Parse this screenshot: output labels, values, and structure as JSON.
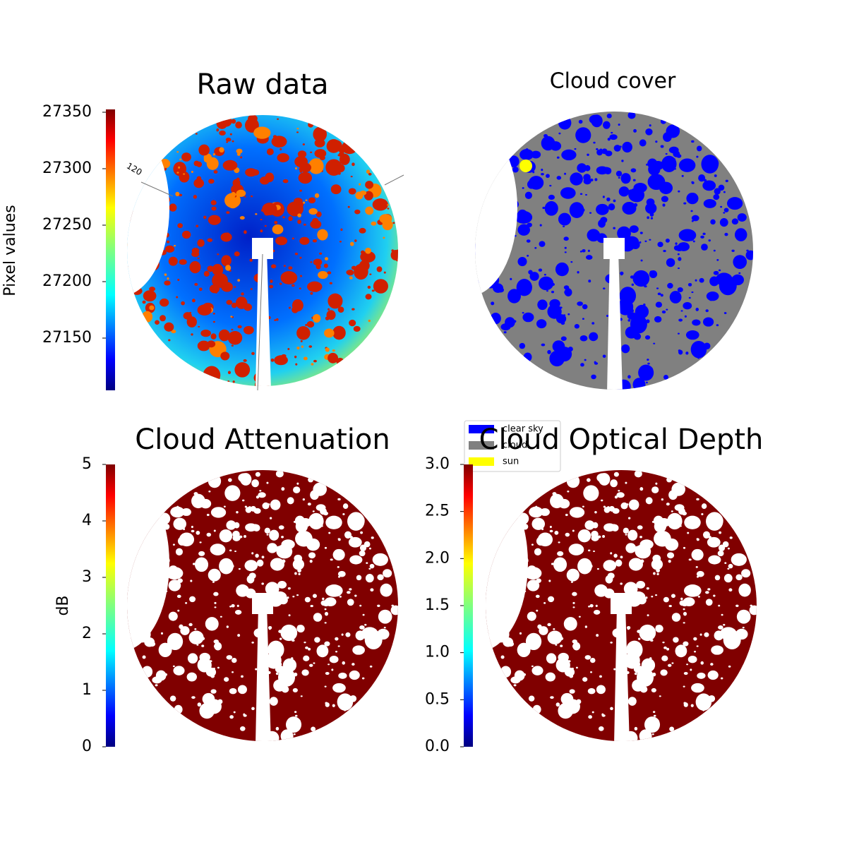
{
  "chart_data": [
    {
      "type": "image",
      "title": "Raw data",
      "colorbar_label": "Pixel values",
      "colormap": "jet",
      "clim": [
        27103.75,
        27352.5
      ],
      "cticks": [
        27150,
        27200,
        27250,
        27300,
        27350
      ],
      "annotation": "120"
    },
    {
      "type": "image",
      "title": "Cloud cover",
      "series": [
        {
          "name": "clear sky",
          "color": "#0000ff"
        },
        {
          "name": "cloud",
          "color": "#808080"
        },
        {
          "name": "sun",
          "color": "#ffff00"
        }
      ]
    },
    {
      "type": "image",
      "title": "Cloud Attenuation",
      "colorbar_label": "dB",
      "colormap": "jet",
      "clim": [
        0,
        5
      ],
      "cticks": [
        0,
        1,
        2,
        3,
        4,
        5
      ]
    },
    {
      "type": "image",
      "title": "Cloud Optical Depth",
      "colormap": "jet",
      "clim": [
        0,
        3
      ],
      "cticks": [
        {
          "value": 0,
          "label": "0.0"
        },
        {
          "value": 0.5,
          "label": "0.5"
        },
        {
          "value": 1,
          "label": "1.0"
        },
        {
          "value": 1.5,
          "label": "1.5"
        },
        {
          "value": 2,
          "label": "2.0"
        },
        {
          "value": 2.5,
          "label": "2.5"
        },
        {
          "value": 3,
          "label": "3.0"
        }
      ]
    }
  ]
}
